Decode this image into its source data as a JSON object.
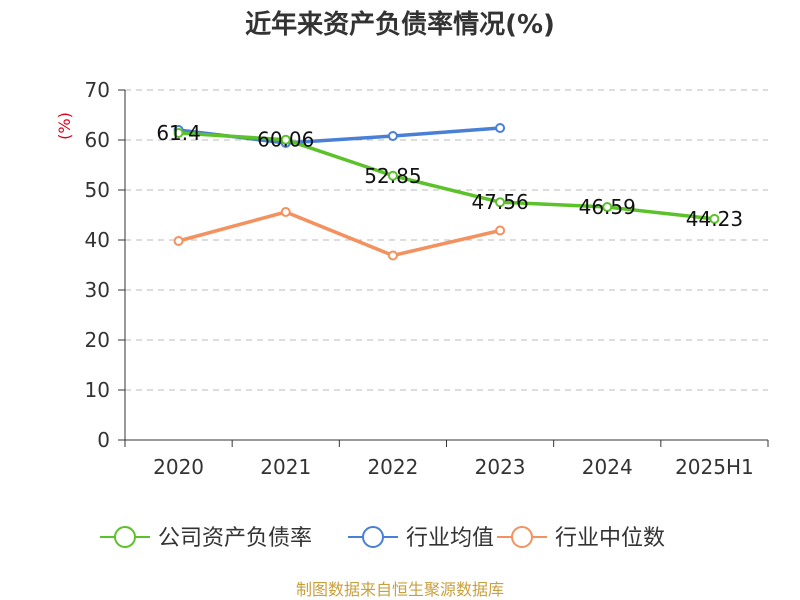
{
  "chart_data": {
    "type": "line",
    "title": "近年来资产负债率情况(%)",
    "ylabel": "(%)",
    "xlabel": "",
    "categories": [
      "2020",
      "2021",
      "2022",
      "2023",
      "2024",
      "2025H1"
    ],
    "ylim": [
      0,
      70
    ],
    "yticks": [
      0,
      10,
      20,
      30,
      40,
      50,
      60,
      70
    ],
    "grid": true,
    "legend_position": "bottom",
    "series": [
      {
        "name": "公司资产负债率",
        "color": "#5cc22a",
        "values": [
          61.4,
          60.06,
          52.85,
          47.56,
          46.59,
          44.23
        ],
        "data_labels": [
          "61.4",
          "60.06",
          "52.85",
          "47.56",
          "46.59",
          "44.23"
        ]
      },
      {
        "name": "行业均值",
        "color": "#4a7fd6",
        "values": [
          62.0,
          59.4,
          60.8,
          62.4,
          null,
          null
        ]
      },
      {
        "name": "行业中位数",
        "color": "#f3915f",
        "values": [
          39.8,
          45.6,
          36.9,
          41.9,
          null,
          null
        ]
      }
    ]
  },
  "source": "制图数据来自恒生聚源数据库"
}
